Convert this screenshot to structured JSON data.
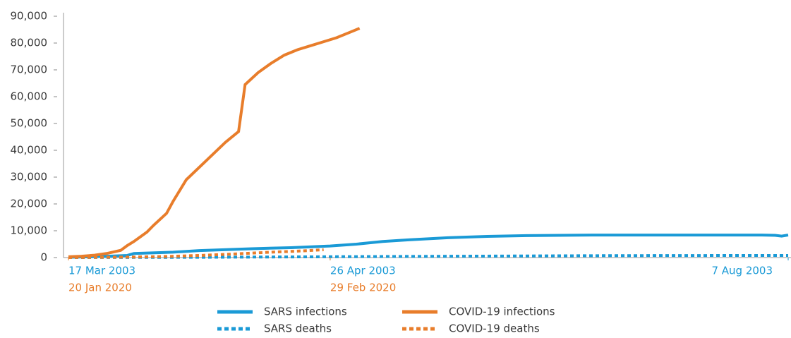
{
  "chart_data": {
    "type": "line",
    "xlim": [
      0,
      110
    ],
    "ylim": [
      0,
      90000
    ],
    "yticks": [
      {
        "value": 0,
        "label": "0"
      },
      {
        "value": 10000,
        "label": "10,000"
      },
      {
        "value": 20000,
        "label": "20,000"
      },
      {
        "value": 30000,
        "label": "30,000"
      },
      {
        "value": 40000,
        "label": "40,000"
      },
      {
        "value": 50000,
        "label": "50,000"
      },
      {
        "value": 60000,
        "label": "60,000"
      },
      {
        "value": 70000,
        "label": "70,000"
      },
      {
        "value": 80000,
        "label": "80,000"
      },
      {
        "value": 90000,
        "label": "90,000"
      }
    ],
    "xticks": [
      {
        "value": 0,
        "label": "17 Mar 2003"
      },
      {
        "value": 40,
        "label": "26 Apr 2003"
      },
      {
        "value": 110,
        "label": "7 Aug 2003"
      }
    ],
    "x2ticks": [
      {
        "value": 0,
        "label": "20 Jan 2020"
      },
      {
        "value": 40,
        "label": "29 Feb 2020"
      }
    ],
    "grid": false,
    "series": [
      {
        "name": "SARS infections",
        "color": "#1a9ad6",
        "dashed": false,
        "x": [
          0,
          5,
          9,
          10,
          16,
          20,
          28,
          34,
          40,
          44,
          48,
          52,
          58,
          64,
          70,
          80,
          90,
          100,
          106,
          108,
          109,
          110
        ],
        "values": [
          100,
          400,
          800,
          1500,
          2000,
          2600,
          3300,
          3700,
          4300,
          5000,
          6000,
          6600,
          7400,
          7900,
          8200,
          8400,
          8400,
          8400,
          8400,
          8300,
          8000,
          8400
        ]
      },
      {
        "name": "SARS deaths",
        "color": "#1a9ad6",
        "dashed": true,
        "x": [
          0,
          10,
          20,
          30,
          40,
          50,
          60,
          70,
          80,
          90,
          100,
          110
        ],
        "values": [
          0,
          50,
          100,
          200,
          300,
          400,
          500,
          600,
          700,
          750,
          780,
          800
        ]
      },
      {
        "name": "COVID-19 infections",
        "color": "#e87d2b",
        "dashed": false,
        "x": [
          0,
          2,
          4,
          6,
          8,
          9,
          10,
          12,
          13,
          15,
          16,
          18,
          21,
          24,
          26,
          27,
          29,
          31,
          33,
          35,
          37,
          39,
          41,
          43,
          44.5
        ],
        "values": [
          300,
          500,
          900,
          1600,
          2700,
          4500,
          6000,
          9500,
          12000,
          16500,
          21000,
          29000,
          36000,
          43000,
          47000,
          64500,
          69000,
          72500,
          75500,
          77500,
          79000,
          80500,
          82000,
          84000,
          85500
        ]
      },
      {
        "name": "COVID-19 deaths",
        "color": "#e87d2b",
        "dashed": true,
        "x": [
          0,
          10,
          15,
          20,
          25,
          30,
          35,
          39
        ],
        "values": [
          0,
          200,
          400,
          800,
          1300,
          1900,
          2400,
          2900
        ]
      }
    ]
  }
}
